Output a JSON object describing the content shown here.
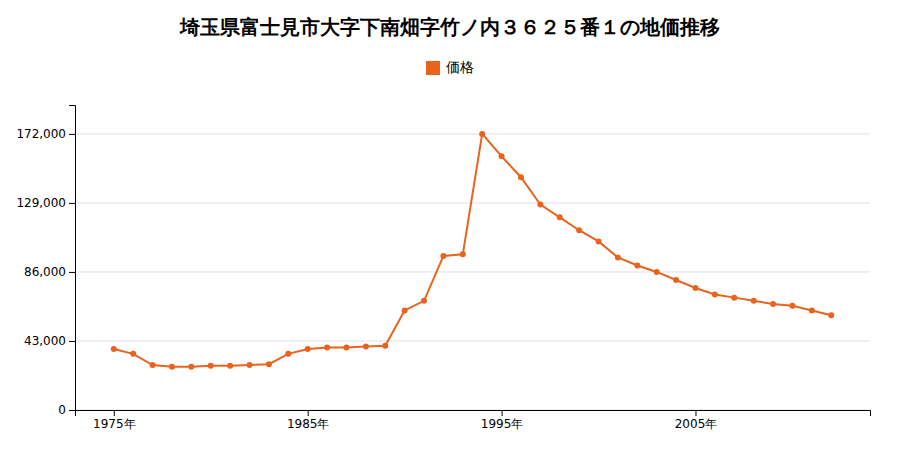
{
  "chart_data": {
    "type": "line",
    "title": "埼玉県富士見市大字下南畑字竹ノ内３６２５番１の地価推移",
    "x": [
      1975,
      1976,
      1977,
      1978,
      1979,
      1980,
      1981,
      1982,
      1983,
      1984,
      1985,
      1986,
      1987,
      1988,
      1989,
      1990,
      1991,
      1992,
      1993,
      1994,
      1995,
      1996,
      1997,
      1998,
      1999,
      2000,
      2001,
      2002,
      2003,
      2004,
      2005,
      2006,
      2007,
      2008,
      2009,
      2010,
      2011,
      2012
    ],
    "series": [
      {
        "name": "価格",
        "color": "#E8641E",
        "values": [
          38000,
          35000,
          28000,
          27000,
          27000,
          27500,
          27500,
          28000,
          28500,
          35000,
          38000,
          39000,
          39000,
          39500,
          40000,
          62000,
          68000,
          96000,
          97000,
          172000,
          158000,
          145000,
          128000,
          120000,
          112000,
          105000,
          95000,
          90000,
          86000,
          81000,
          76000,
          72000,
          70000,
          68000,
          66000,
          65000,
          62000,
          59000
        ]
      }
    ],
    "xlim": [
      1973,
      2014
    ],
    "xticks": [
      {
        "value": 1975,
        "label": "1975年"
      },
      {
        "value": 1985,
        "label": "1985年"
      },
      {
        "value": 1995,
        "label": "1995年"
      },
      {
        "value": 2005,
        "label": "2005年"
      }
    ],
    "ylim": [
      0,
      190000
    ],
    "yticks": [
      0,
      {
        "value": 43000,
        "label": "43,000"
      },
      {
        "value": 86000,
        "label": "86,000"
      },
      {
        "value": 129000,
        "label": "129,000"
      },
      {
        "value": 172000,
        "label": "172,000"
      }
    ],
    "grid": true,
    "legend": "top",
    "marker": "circle",
    "line_style": "solid"
  }
}
